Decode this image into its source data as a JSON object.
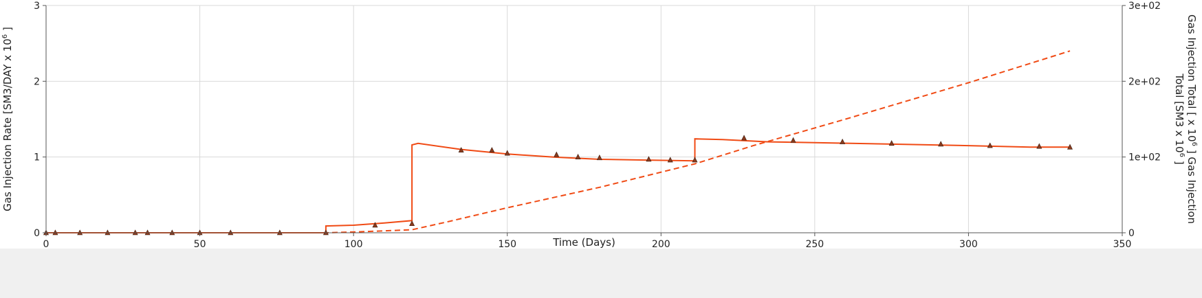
{
  "chart_data": {
    "type": "line",
    "title": "",
    "xlabel": "Time (Days)",
    "ylabel_left_main": "Gas Injection Rate [SM3/DAY x 10",
    "ylabel_left_exp": "6",
    "ylabel_left_end": " ]",
    "ylabel_right_line1_main": "Gas Injection Total [ x 10",
    "ylabel_right_line1_exp": "6",
    "ylabel_right_line1_end": " ] Gas Injection",
    "ylabel_right_line2_main": "Total [SM3 x 10",
    "ylabel_right_line2_exp": "6",
    "ylabel_right_line2_end": " ]",
    "xlim": [
      0,
      350
    ],
    "ylim_left": [
      0,
      3
    ],
    "ylim_right": [
      0,
      300
    ],
    "x_ticks": [
      0,
      50,
      100,
      150,
      200,
      250,
      300,
      350
    ],
    "y_left_ticks": [
      0,
      1,
      2,
      3
    ],
    "y_right_ticks": [
      {
        "value": 0,
        "label": "0"
      },
      {
        "value": 100,
        "label": "1e+02"
      },
      {
        "value": 200,
        "label": "2e+02"
      },
      {
        "value": 300,
        "label": "3e+02"
      }
    ],
    "grid": true,
    "series": [
      {
        "axis": "left",
        "style": "solid",
        "color": "#f04a14",
        "points": [
          [
            0,
            0
          ],
          [
            91,
            0
          ],
          [
            91,
            0.09
          ],
          [
            100,
            0.1
          ],
          [
            110,
            0.13
          ],
          [
            119,
            0.16
          ],
          [
            119,
            1.16
          ],
          [
            121,
            1.18
          ],
          [
            135,
            1.1
          ],
          [
            150,
            1.04
          ],
          [
            165,
            1.0
          ],
          [
            180,
            0.97
          ],
          [
            195,
            0.96
          ],
          [
            211,
            0.95
          ],
          [
            211,
            1.24
          ],
          [
            220,
            1.23
          ],
          [
            235,
            1.2
          ],
          [
            250,
            1.19
          ],
          [
            275,
            1.17
          ],
          [
            300,
            1.15
          ],
          [
            320,
            1.13
          ],
          [
            333,
            1.13
          ]
        ]
      },
      {
        "axis": "right",
        "style": "dashed",
        "color": "#f04a14",
        "points": [
          [
            0,
            0
          ],
          [
            91,
            0
          ],
          [
            100,
            1
          ],
          [
            110,
            2.5
          ],
          [
            119,
            4
          ],
          [
            130,
            14
          ],
          [
            150,
            33
          ],
          [
            180,
            60
          ],
          [
            211,
            91
          ],
          [
            230,
            115
          ],
          [
            260,
            150
          ],
          [
            300,
            198
          ],
          [
            333,
            240
          ]
        ]
      },
      {
        "axis": "left",
        "style": "markers",
        "marker": "triangle",
        "color": "#8a3b1e",
        "points": [
          [
            0,
            0
          ],
          [
            3,
            0
          ],
          [
            11,
            0
          ],
          [
            20,
            0
          ],
          [
            29,
            0
          ],
          [
            33,
            0
          ],
          [
            41,
            0
          ],
          [
            50,
            0
          ],
          [
            60,
            0
          ],
          [
            76,
            0
          ],
          [
            91,
            0
          ],
          [
            107,
            0.1
          ],
          [
            119,
            0.12
          ],
          [
            135,
            1.09
          ],
          [
            145,
            1.09
          ],
          [
            150,
            1.05
          ],
          [
            166,
            1.03
          ],
          [
            173,
            1.0
          ],
          [
            180,
            0.99
          ],
          [
            196,
            0.97
          ],
          [
            203,
            0.96
          ],
          [
            211,
            0.96
          ],
          [
            227,
            1.25
          ],
          [
            243,
            1.22
          ],
          [
            259,
            1.2
          ],
          [
            275,
            1.18
          ],
          [
            291,
            1.17
          ],
          [
            307,
            1.15
          ],
          [
            323,
            1.14
          ],
          [
            333,
            1.13
          ]
        ]
      }
    ]
  }
}
